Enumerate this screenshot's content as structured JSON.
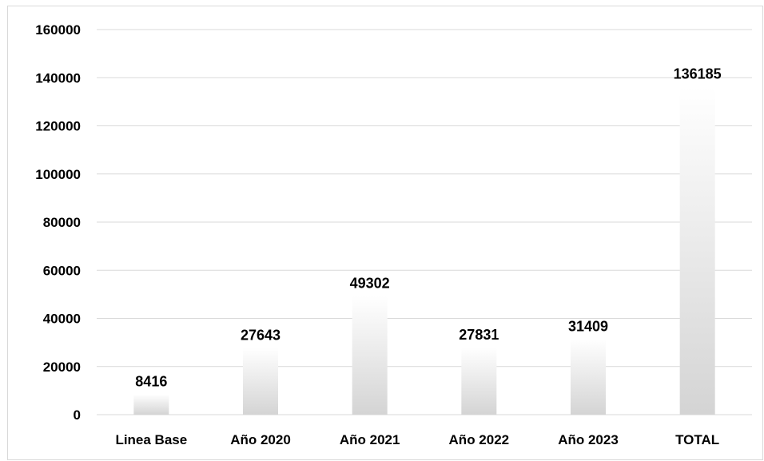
{
  "chart_data": {
    "type": "bar",
    "title": "",
    "xlabel": "",
    "ylabel": "",
    "categories": [
      "Linea Base",
      "Año 2020",
      "Año 2021",
      "Año 2022",
      "Año 2023",
      "TOTAL"
    ],
    "values": [
      8416,
      27643,
      49302,
      27831,
      31409,
      136185
    ],
    "data_labels": [
      "8416",
      "27643",
      "49302",
      "27831",
      "31409",
      "136185"
    ],
    "ylim": [
      0,
      160000
    ],
    "yticks": [
      0,
      20000,
      40000,
      60000,
      80000,
      100000,
      120000,
      140000,
      160000
    ],
    "grid": true,
    "legend": "none",
    "colors": {
      "bar_light": "#ffffff",
      "bar_dark": "#d4d4d4",
      "grid": "#d9d9d9",
      "text": "#000000"
    }
  }
}
